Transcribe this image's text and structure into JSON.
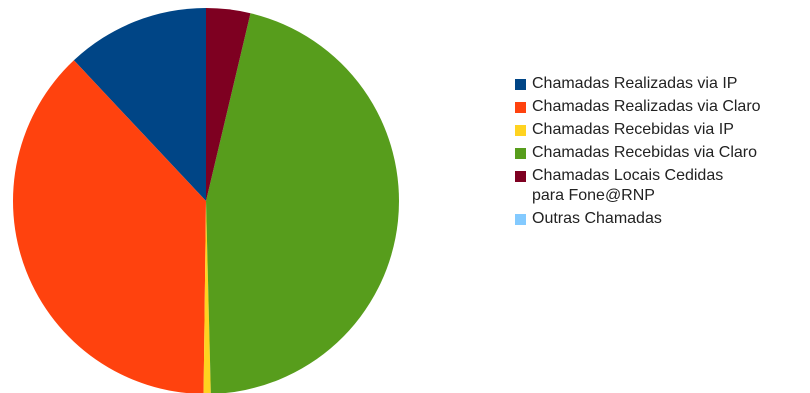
{
  "chart_data": {
    "type": "pie",
    "title": "",
    "slices": [
      {
        "label": "Chamadas Realizadas via IP",
        "value": 12.0,
        "color": "#004586"
      },
      {
        "label": "Chamadas Realizadas via Claro",
        "value": 37.8,
        "color": "#ff420e"
      },
      {
        "label": "Chamadas Recebidas via IP",
        "value": 0.6,
        "color": "#ffd320"
      },
      {
        "label": "Chamadas Recebidas via Claro",
        "value": 45.9,
        "color": "#579d1c"
      },
      {
        "label": "Chamadas Locais Cedidas\npara Fone@RNP",
        "value": 3.7,
        "color": "#7e0021"
      },
      {
        "label": "Outras Chamadas",
        "value": 0.0,
        "color": "#83caff"
      }
    ],
    "legend_position": "right"
  }
}
